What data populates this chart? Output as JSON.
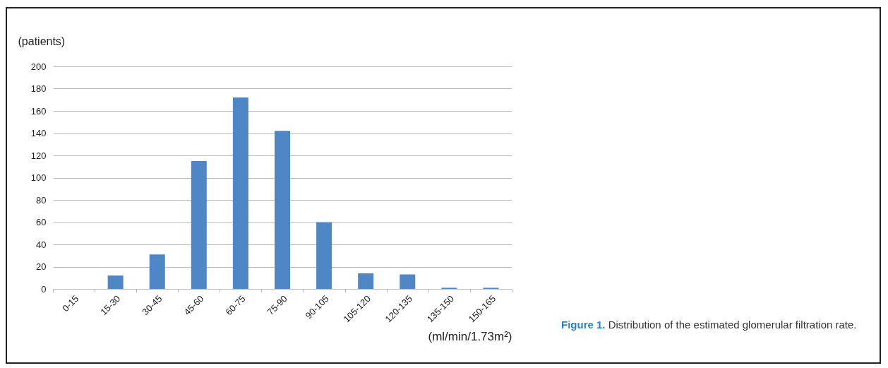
{
  "chart_data": {
    "type": "bar",
    "title": "Figure 1.",
    "subtitle": "Distribution of the estimated glomerular filtration rate.",
    "xlabel": "(ml/min/1.73m²)",
    "ylabel": "(patients)",
    "categories": [
      "0-15",
      "15-30",
      "30-45",
      "45-60",
      "60-75",
      "75-90",
      "90-105",
      "105-120",
      "120-135",
      "135-150",
      "150-165"
    ],
    "values": [
      0,
      12,
      31,
      115,
      172,
      142,
      60,
      14,
      13,
      1,
      1
    ],
    "color": "#4f86c6",
    "ylim": [
      0,
      200
    ],
    "yticks": [
      0,
      20,
      40,
      60,
      80,
      100,
      120,
      140,
      160,
      180,
      200
    ],
    "grid": "y"
  }
}
